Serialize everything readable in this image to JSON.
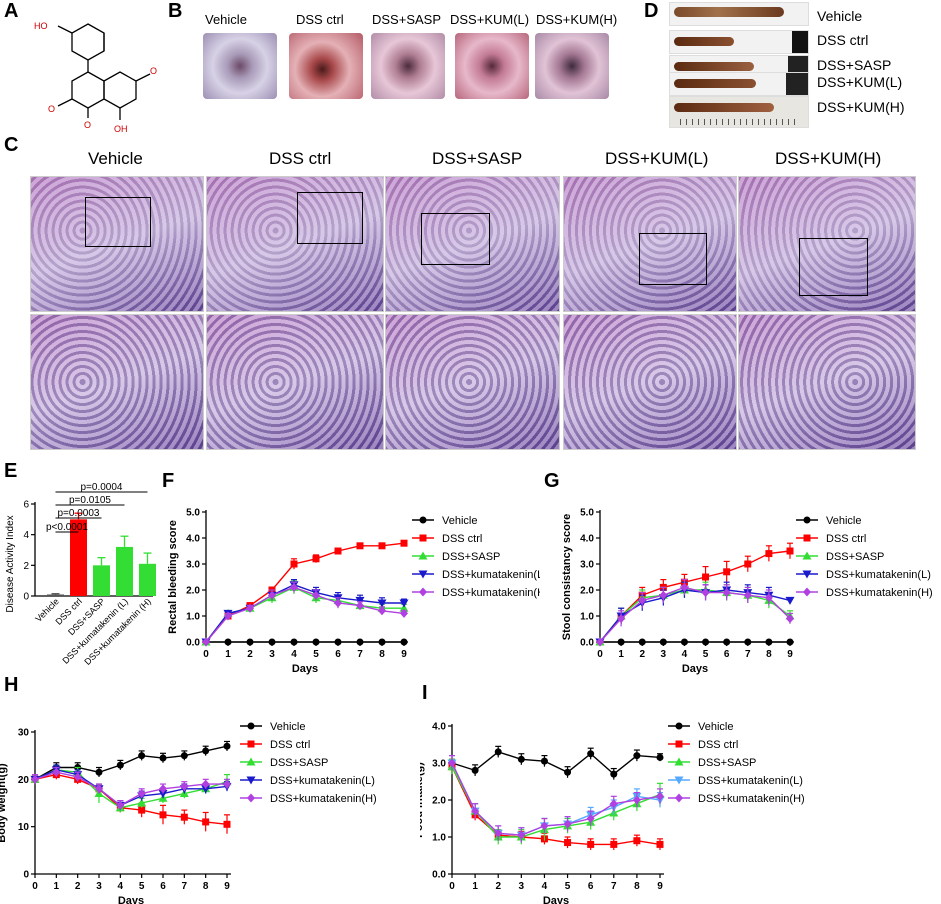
{
  "panels": {
    "A": "A",
    "B": "B",
    "C": "C",
    "D": "D",
    "E": "E",
    "F": "F",
    "G": "G",
    "H": "H",
    "I": "I"
  },
  "structure": {
    "labels": [
      "HO",
      "O",
      "O",
      "OH",
      "O"
    ]
  },
  "groups5": [
    "Vehicle",
    "DSS ctrl",
    "DSS+SASP",
    "DSS+KUM(L)",
    "DSS+KUM(H)"
  ],
  "colors": {
    "vehicle": "#000000",
    "dss": "#ff0000",
    "sasp": "#33dd33",
    "kumL": "#1a1acc",
    "kumH": "#b040e0",
    "kumL_I": "#55aaff",
    "histo_pink": "#d58fc8",
    "histo_purple": "#5b3f8e"
  },
  "chart_data": [
    {
      "id": "E",
      "type": "bar",
      "ylabel": "Disease Activity Index",
      "ylim": [
        0,
        6
      ],
      "yticks": [
        0,
        2,
        4,
        6
      ],
      "categories": [
        "Vehicle",
        "DSS ctrl",
        "DSS+SASP",
        "DSS+kumatakenin (L)",
        "DSS+kumatakenin (H)"
      ],
      "values": [
        0.1,
        5.0,
        2.0,
        3.2,
        2.1
      ],
      "errors": [
        0.05,
        0.4,
        0.5,
        0.7,
        0.7
      ],
      "annotations": [
        "p<0.0001",
        "p=0.0003",
        "p=0.0105",
        "p=0.0004"
      ]
    },
    {
      "id": "F",
      "type": "line",
      "xlabel": "Days",
      "ylabel": "Rectal bleeding score",
      "xlim": [
        0,
        9
      ],
      "ylim": [
        0,
        5
      ],
      "xticks": [
        0,
        1,
        2,
        3,
        4,
        5,
        6,
        7,
        8,
        9
      ],
      "yticks": [
        "0.0",
        "1.0",
        "2.0",
        "3.0",
        "4.0",
        "5.0"
      ],
      "x": [
        0,
        1,
        2,
        3,
        4,
        5,
        6,
        7,
        8,
        9
      ],
      "series": [
        {
          "name": "Vehicle",
          "values": [
            0,
            0,
            0,
            0,
            0,
            0,
            0,
            0,
            0,
            0
          ],
          "errors": [
            0,
            0,
            0,
            0,
            0,
            0,
            0,
            0,
            0,
            0
          ]
        },
        {
          "name": "DSS ctrl",
          "values": [
            0,
            1.0,
            1.4,
            2.0,
            3.0,
            3.2,
            3.5,
            3.7,
            3.7,
            3.8
          ],
          "errors": [
            0,
            0.1,
            0.1,
            0.1,
            0.2,
            0.15,
            0.1,
            0.05,
            0.05,
            0.1
          ]
        },
        {
          "name": "DSS+SASP",
          "values": [
            0,
            1.1,
            1.3,
            1.7,
            2.1,
            1.7,
            1.6,
            1.4,
            1.3,
            1.3
          ],
          "errors": [
            0,
            0.1,
            0.1,
            0.2,
            0.25,
            0.2,
            0.2,
            0.15,
            0.15,
            0.15
          ]
        },
        {
          "name": "DSS+kumatakenin(L)",
          "values": [
            0,
            1.1,
            1.3,
            1.8,
            2.2,
            1.9,
            1.7,
            1.6,
            1.5,
            1.5
          ],
          "errors": [
            0,
            0.1,
            0.1,
            0.2,
            0.2,
            0.2,
            0.2,
            0.2,
            0.2,
            0.15
          ]
        },
        {
          "name": "DSS+kumatakenin(H)",
          "values": [
            0,
            1.0,
            1.3,
            1.8,
            2.1,
            1.8,
            1.5,
            1.4,
            1.2,
            1.1
          ],
          "errors": [
            0,
            0.1,
            0.1,
            0.2,
            0.2,
            0.2,
            0.2,
            0.15,
            0.15,
            0.1
          ]
        }
      ]
    },
    {
      "id": "G",
      "type": "line",
      "xlabel": "Days",
      "ylabel": "Stool consistancy score",
      "xlim": [
        0,
        9
      ],
      "ylim": [
        0,
        5
      ],
      "xticks": [
        0,
        1,
        2,
        3,
        4,
        5,
        6,
        7,
        8,
        9
      ],
      "yticks": [
        "0.0",
        "1.0",
        "2.0",
        "3.0",
        "4.0",
        "5.0"
      ],
      "x": [
        0,
        1,
        2,
        3,
        4,
        5,
        6,
        7,
        8,
        9
      ],
      "series": [
        {
          "name": "Vehicle",
          "values": [
            0,
            0,
            0,
            0,
            0,
            0,
            0,
            0,
            0,
            0
          ],
          "errors": [
            0,
            0,
            0,
            0,
            0,
            0,
            0,
            0,
            0,
            0
          ]
        },
        {
          "name": "DSS ctrl",
          "values": [
            0,
            1.0,
            1.8,
            2.1,
            2.3,
            2.5,
            2.7,
            3.0,
            3.4,
            3.5
          ],
          "errors": [
            0,
            0.3,
            0.3,
            0.3,
            0.3,
            0.4,
            0.4,
            0.3,
            0.3,
            0.3
          ]
        },
        {
          "name": "DSS+SASP",
          "values": [
            0,
            1.0,
            1.7,
            1.8,
            2.0,
            2.0,
            1.9,
            1.8,
            1.6,
            1.0
          ],
          "errors": [
            0,
            0.3,
            0.3,
            0.3,
            0.3,
            0.3,
            0.3,
            0.3,
            0.3,
            0.2
          ]
        },
        {
          "name": "DSS+kumatakenin(L)",
          "values": [
            0,
            1.0,
            1.5,
            1.7,
            2.0,
            1.9,
            2.0,
            1.9,
            1.8,
            1.6
          ],
          "errors": [
            0,
            0.3,
            0.3,
            0.3,
            0.3,
            0.3,
            0.3,
            0.3,
            0.3,
            0.1
          ]
        },
        {
          "name": "DSS+kumatakenin(H)",
          "values": [
            0,
            0.9,
            1.6,
            1.8,
            2.1,
            1.9,
            1.9,
            1.8,
            1.7,
            0.9
          ],
          "errors": [
            0,
            0.3,
            0.3,
            0.3,
            0.3,
            0.3,
            0.3,
            0.3,
            0.3,
            0.2
          ]
        }
      ]
    },
    {
      "id": "H",
      "type": "line",
      "xlabel": "Days",
      "ylabel": "Body weight(g)",
      "xlim": [
        0,
        9
      ],
      "ylim": [
        0,
        30
      ],
      "xticks": [
        0,
        1,
        2,
        3,
        4,
        5,
        6,
        7,
        8,
        9
      ],
      "yticks": [
        "0",
        "10",
        "20",
        "30"
      ],
      "x": [
        0,
        1,
        2,
        3,
        4,
        5,
        6,
        7,
        8,
        9
      ],
      "series": [
        {
          "name": "Vehicle",
          "values": [
            20,
            22.5,
            22.5,
            21.5,
            23,
            25,
            24.5,
            25,
            26,
            27
          ],
          "errors": [
            1,
            1,
            1,
            1,
            1,
            1,
            1,
            1,
            1,
            1
          ]
        },
        {
          "name": "DSS ctrl",
          "values": [
            20,
            21,
            20,
            18,
            14,
            13.5,
            12.5,
            12,
            11,
            10.5
          ],
          "errors": [
            1,
            1,
            1,
            1,
            1,
            1.5,
            2,
            1.5,
            2,
            2
          ]
        },
        {
          "name": "DSS+SASP",
          "values": [
            20,
            22,
            21.5,
            17,
            14,
            15,
            16,
            17,
            18,
            19.5
          ],
          "errors": [
            1,
            1,
            1,
            2,
            1,
            1,
            1,
            1,
            1,
            1.5
          ]
        },
        {
          "name": "DSS+kumatakenin(L)",
          "values": [
            20,
            22,
            21,
            18,
            14.5,
            16.5,
            17,
            18,
            18,
            18.5
          ],
          "errors": [
            1,
            1,
            1,
            1,
            1,
            1,
            1,
            1,
            1,
            1
          ]
        },
        {
          "name": "DSS+kumatakenin(H)",
          "values": [
            20,
            21.5,
            20.5,
            18,
            14.5,
            17,
            18,
            18.5,
            19,
            19
          ],
          "errors": [
            1,
            1,
            1,
            1,
            1,
            1,
            1,
            1,
            1,
            1
          ]
        }
      ]
    },
    {
      "id": "I",
      "type": "line",
      "xlabel": "Days",
      "ylabel": "Food intake(g)",
      "xlim": [
        0,
        9
      ],
      "ylim": [
        0,
        4
      ],
      "xticks": [
        0,
        1,
        2,
        3,
        4,
        5,
        6,
        7,
        8,
        9
      ],
      "yticks": [
        "0.0",
        "1.0",
        "2.0",
        "3.0",
        "4.0"
      ],
      "x": [
        0,
        1,
        2,
        3,
        4,
        5,
        6,
        7,
        8,
        9
      ],
      "series": [
        {
          "name": "Vehicle",
          "values": [
            3.0,
            2.8,
            3.3,
            3.1,
            3.05,
            2.75,
            3.25,
            2.7,
            3.2,
            3.15
          ],
          "errors": [
            0.1,
            0.15,
            0.15,
            0.15,
            0.15,
            0.15,
            0.15,
            0.15,
            0.15,
            0.1
          ]
        },
        {
          "name": "DSS ctrl",
          "values": [
            2.9,
            1.6,
            1.05,
            1.0,
            0.95,
            0.85,
            0.8,
            0.8,
            0.9,
            0.8
          ],
          "errors": [
            0.2,
            0.15,
            0.15,
            0.15,
            0.15,
            0.15,
            0.15,
            0.15,
            0.15,
            0.15
          ]
        },
        {
          "name": "DSS+SASP",
          "values": [
            2.9,
            1.7,
            1.0,
            1.0,
            1.2,
            1.3,
            1.4,
            1.65,
            1.9,
            2.15
          ],
          "errors": [
            0.2,
            0.2,
            0.2,
            0.2,
            0.3,
            0.2,
            0.2,
            0.2,
            0.2,
            0.3
          ]
        },
        {
          "name": "DSS+kumatakenin(L)",
          "values": [
            3.0,
            1.7,
            1.1,
            1.05,
            1.3,
            1.35,
            1.6,
            1.8,
            2.1,
            2.0
          ],
          "errors": [
            0.2,
            0.2,
            0.2,
            0.2,
            0.2,
            0.2,
            0.2,
            0.2,
            0.2,
            0.2
          ]
        },
        {
          "name": "DSS+kumatakenin(H)",
          "values": [
            3.0,
            1.7,
            1.1,
            1.05,
            1.3,
            1.35,
            1.5,
            1.9,
            2.0,
            2.1
          ],
          "errors": [
            0.2,
            0.2,
            0.2,
            0.2,
            0.2,
            0.2,
            0.2,
            0.2,
            0.2,
            0.2
          ]
        }
      ]
    }
  ]
}
